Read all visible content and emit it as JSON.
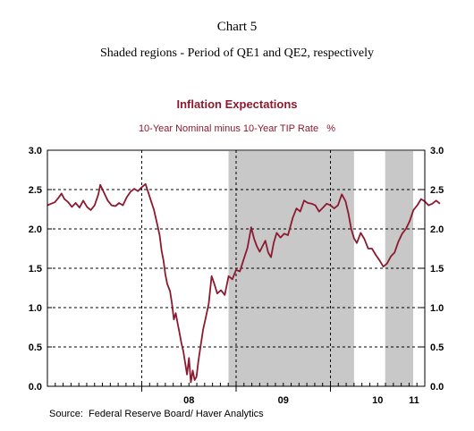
{
  "page": {
    "heading": "Chart 5",
    "subheading": "Shaded regions - Period of QE1 and QE2, respectively"
  },
  "chart_data": {
    "type": "line",
    "title": "Inflation Expectations",
    "subtitle": "10-Year Nominal minus 10-Year TIP Rate   %",
    "source": "Source:  Federal Reserve Board/ Haver Analytics",
    "ylim": [
      0.0,
      3.0
    ],
    "yticks": [
      "0.0",
      "0.5",
      "1.0",
      "1.5",
      "2.0",
      "2.5",
      "3.0"
    ],
    "xlim": [
      2007.0,
      2011.0
    ],
    "xtick_labels": [
      {
        "label": "08",
        "at": 2008.5
      },
      {
        "label": "09",
        "at": 2009.5
      },
      {
        "label": "10",
        "at": 2010.5
      },
      {
        "label": "11",
        "at": 2011.0
      }
    ],
    "year_boundaries": [
      2008.0,
      2009.0,
      2010.0
    ],
    "shaded_periods": [
      {
        "name": "QE1",
        "start": 2008.92,
        "end": 2010.25
      },
      {
        "name": "QE2",
        "start": 2010.58,
        "end": 2011.5
      }
    ],
    "grid": true,
    "series": [
      {
        "color": "#8b1a2f",
        "points": [
          [
            2007.0,
            2.3
          ],
          [
            2007.04,
            2.32
          ],
          [
            2007.08,
            2.34
          ],
          [
            2007.12,
            2.4
          ],
          [
            2007.15,
            2.45
          ],
          [
            2007.18,
            2.38
          ],
          [
            2007.22,
            2.34
          ],
          [
            2007.26,
            2.28
          ],
          [
            2007.3,
            2.33
          ],
          [
            2007.34,
            2.27
          ],
          [
            2007.38,
            2.36
          ],
          [
            2007.42,
            2.28
          ],
          [
            2007.46,
            2.24
          ],
          [
            2007.5,
            2.3
          ],
          [
            2007.54,
            2.44
          ],
          [
            2007.56,
            2.56
          ],
          [
            2007.6,
            2.46
          ],
          [
            2007.64,
            2.36
          ],
          [
            2007.68,
            2.3
          ],
          [
            2007.72,
            2.29
          ],
          [
            2007.76,
            2.33
          ],
          [
            2007.8,
            2.3
          ],
          [
            2007.84,
            2.4
          ],
          [
            2007.88,
            2.47
          ],
          [
            2007.92,
            2.51
          ],
          [
            2007.96,
            2.48
          ],
          [
            2008.0,
            2.53
          ],
          [
            2008.04,
            2.57
          ],
          [
            2008.07,
            2.46
          ],
          [
            2008.1,
            2.35
          ],
          [
            2008.13,
            2.24
          ],
          [
            2008.16,
            2.08
          ],
          [
            2008.19,
            1.92
          ],
          [
            2008.21,
            1.72
          ],
          [
            2008.23,
            1.6
          ],
          [
            2008.25,
            1.42
          ],
          [
            2008.27,
            1.3
          ],
          [
            2008.3,
            1.21
          ],
          [
            2008.32,
            1.05
          ],
          [
            2008.34,
            0.85
          ],
          [
            2008.36,
            0.93
          ],
          [
            2008.38,
            0.8
          ],
          [
            2008.4,
            0.68
          ],
          [
            2008.42,
            0.55
          ],
          [
            2008.44,
            0.45
          ],
          [
            2008.46,
            0.3
          ],
          [
            2008.48,
            0.15
          ],
          [
            2008.5,
            0.36
          ],
          [
            2008.52,
            0.05
          ],
          [
            2008.54,
            0.2
          ],
          [
            2008.56,
            0.08
          ],
          [
            2008.58,
            0.12
          ],
          [
            2008.6,
            0.32
          ],
          [
            2008.62,
            0.48
          ],
          [
            2008.65,
            0.72
          ],
          [
            2008.68,
            0.88
          ],
          [
            2008.71,
            1.05
          ],
          [
            2008.74,
            1.4
          ],
          [
            2008.77,
            1.3
          ],
          [
            2008.8,
            1.18
          ],
          [
            2008.84,
            1.22
          ],
          [
            2008.88,
            1.16
          ],
          [
            2008.92,
            1.4
          ],
          [
            2008.96,
            1.36
          ],
          [
            2009.0,
            1.48
          ],
          [
            2009.04,
            1.46
          ],
          [
            2009.08,
            1.61
          ],
          [
            2009.12,
            1.76
          ],
          [
            2009.16,
            2.02
          ],
          [
            2009.19,
            1.88
          ],
          [
            2009.22,
            1.78
          ],
          [
            2009.25,
            1.71
          ],
          [
            2009.28,
            1.78
          ],
          [
            2009.31,
            1.85
          ],
          [
            2009.34,
            1.7
          ],
          [
            2009.37,
            1.64
          ],
          [
            2009.4,
            1.83
          ],
          [
            2009.43,
            1.95
          ],
          [
            2009.47,
            1.89
          ],
          [
            2009.51,
            1.94
          ],
          [
            2009.55,
            1.92
          ],
          [
            2009.6,
            2.14
          ],
          [
            2009.64,
            2.26
          ],
          [
            2009.68,
            2.22
          ],
          [
            2009.72,
            2.36
          ],
          [
            2009.76,
            2.33
          ],
          [
            2009.8,
            2.32
          ],
          [
            2009.84,
            2.3
          ],
          [
            2009.88,
            2.22
          ],
          [
            2009.92,
            2.27
          ],
          [
            2009.96,
            2.32
          ],
          [
            2010.0,
            2.3
          ],
          [
            2010.04,
            2.26
          ],
          [
            2010.08,
            2.3
          ],
          [
            2010.12,
            2.44
          ],
          [
            2010.16,
            2.35
          ],
          [
            2010.19,
            2.2
          ],
          [
            2010.22,
            2.0
          ],
          [
            2010.25,
            1.88
          ],
          [
            2010.28,
            1.82
          ],
          [
            2010.32,
            1.95
          ],
          [
            2010.36,
            1.87
          ],
          [
            2010.4,
            1.75
          ],
          [
            2010.44,
            1.75
          ],
          [
            2010.48,
            1.67
          ],
          [
            2010.52,
            1.6
          ],
          [
            2010.56,
            1.52
          ],
          [
            2010.6,
            1.56
          ],
          [
            2010.64,
            1.65
          ],
          [
            2010.68,
            1.7
          ],
          [
            2010.72,
            1.84
          ],
          [
            2010.76,
            1.94
          ],
          [
            2010.8,
            2.0
          ],
          [
            2010.84,
            2.1
          ],
          [
            2010.88,
            2.24
          ],
          [
            2010.92,
            2.3
          ],
          [
            2010.96,
            2.38
          ],
          [
            2011.0,
            2.35
          ],
          [
            2011.04,
            2.3
          ],
          [
            2011.08,
            2.32
          ],
          [
            2011.12,
            2.36
          ],
          [
            2011.16,
            2.32
          ]
        ]
      }
    ]
  }
}
